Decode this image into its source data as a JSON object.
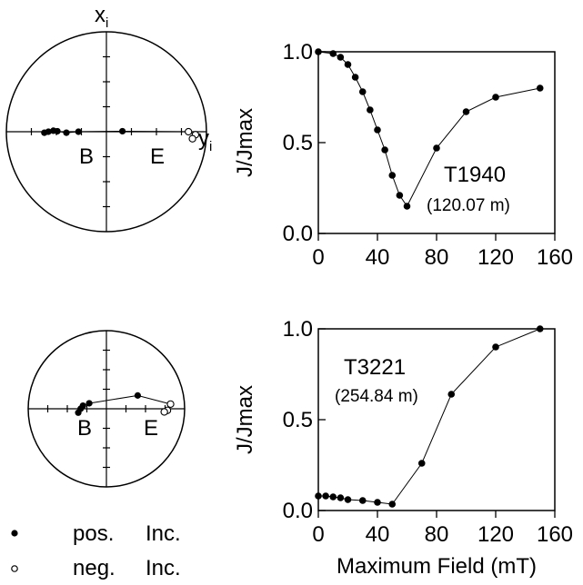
{
  "chart_data": [
    {
      "type": "stereonet",
      "axis_labels": {
        "x": "x",
        "x_sub": "i",
        "y": "y",
        "y_sub": "i"
      },
      "markers": {
        "start": "B",
        "end": "E"
      },
      "points": [
        {
          "x": -0.62,
          "y": -0.01,
          "filled": true
        },
        {
          "x": -0.58,
          "y": 0.0,
          "filled": true
        },
        {
          "x": -0.53,
          "y": 0.01,
          "filled": true
        },
        {
          "x": -0.49,
          "y": 0.005,
          "filled": true
        },
        {
          "x": -0.4,
          "y": -0.01,
          "filled": true
        },
        {
          "x": -0.28,
          "y": 0.0,
          "filled": true
        },
        {
          "x": 0.16,
          "y": 0.005,
          "filled": true
        },
        {
          "x": 0.82,
          "y": 0.0,
          "filled": false
        },
        {
          "x": 0.89,
          "y": -0.03,
          "filled": false
        },
        {
          "x": 0.86,
          "y": -0.07,
          "filled": false
        }
      ]
    },
    {
      "type": "line",
      "sample": "T1940",
      "depth": "(120.07 m)",
      "xlim": [
        0,
        160
      ],
      "ylim": [
        0,
        1
      ],
      "xticks": [
        "0",
        "40",
        "80",
        "120",
        "160"
      ],
      "yticks": [
        "0.0",
        "0.5",
        "1.0"
      ],
      "ylabel": "J/Jmax",
      "x": [
        0,
        10,
        15,
        20,
        25,
        30,
        35,
        40,
        45,
        50,
        55,
        60,
        80,
        100,
        120,
        150
      ],
      "y": [
        1.0,
        0.99,
        0.97,
        0.93,
        0.86,
        0.78,
        0.68,
        0.57,
        0.46,
        0.32,
        0.21,
        0.15,
        0.47,
        0.67,
        0.75,
        0.8
      ]
    },
    {
      "type": "stereonet",
      "markers": {
        "start": "B",
        "end": "E"
      },
      "points": [
        {
          "x": -0.36,
          "y": -0.05,
          "filled": true
        },
        {
          "x": -0.33,
          "y": 0.0,
          "filled": true
        },
        {
          "x": -0.3,
          "y": 0.04,
          "filled": true
        },
        {
          "x": -0.22,
          "y": 0.07,
          "filled": true
        },
        {
          "x": 0.4,
          "y": 0.17,
          "filled": true
        },
        {
          "x": 0.82,
          "y": 0.06,
          "filled": false
        },
        {
          "x": 0.78,
          "y": -0.02,
          "filled": false
        },
        {
          "x": 0.74,
          "y": -0.04,
          "filled": false
        }
      ]
    },
    {
      "type": "line",
      "sample": "T3221",
      "depth": "(254.84 m)",
      "xlim": [
        0,
        160
      ],
      "ylim": [
        0,
        1
      ],
      "xticks": [
        "0",
        "40",
        "80",
        "120",
        "160"
      ],
      "yticks": [
        "0.0",
        "0.5",
        "1.0"
      ],
      "ylabel": "J/Jmax",
      "xlabel": "Maximum Field (mT)",
      "x": [
        0,
        5,
        10,
        15,
        20,
        30,
        40,
        50,
        70,
        90,
        120,
        150
      ],
      "y": [
        0.08,
        0.08,
        0.075,
        0.07,
        0.06,
        0.055,
        0.045,
        0.035,
        0.26,
        0.64,
        0.9,
        1.0
      ]
    }
  ],
  "legend": [
    {
      "symbol": "•",
      "label": "pos.",
      "label2": "Inc."
    },
    {
      "symbol": "◦",
      "label": "neg.",
      "label2": "Inc."
    }
  ]
}
